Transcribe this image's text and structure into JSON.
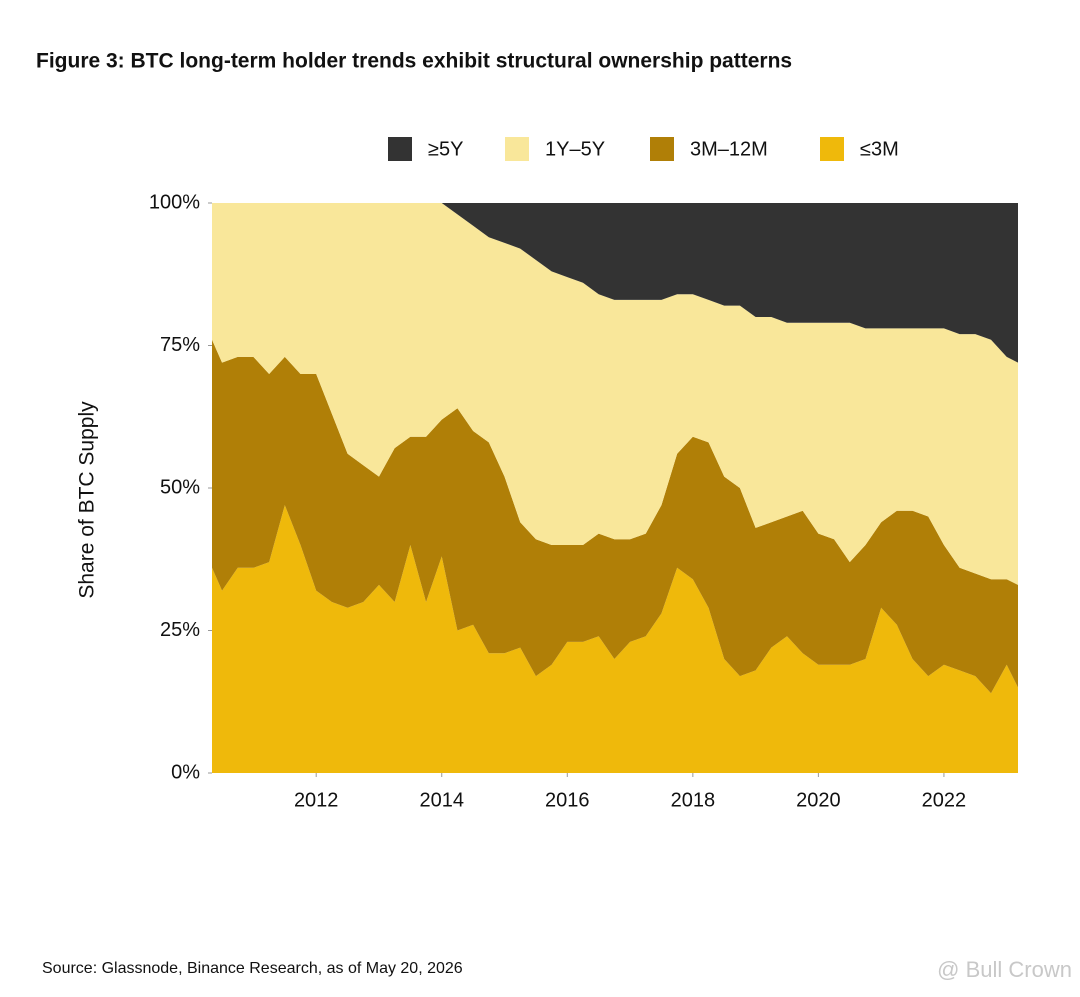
{
  "chart_data": {
    "type": "stacked-area",
    "title": "Figure 3: BTC long-term holder trends exhibit structural ownership patterns",
    "y_label": "Share of BTC Supply",
    "source": "Source: Glassnode, Binance Research, as of May 20, 2026",
    "watermark": "@ Bull Crown",
    "legend": "top",
    "x": [
      2010.34,
      2010.5,
      2010.75,
      2011,
      2011.25,
      2011.5,
      2011.75,
      2012,
      2012.25,
      2012.5,
      2012.75,
      2013,
      2013.25,
      2013.5,
      2013.75,
      2014,
      2014.25,
      2014.5,
      2014.75,
      2015,
      2015.25,
      2015.5,
      2015.75,
      2016,
      2016.25,
      2016.5,
      2016.75,
      2017,
      2017.25,
      2017.5,
      2017.75,
      2018,
      2018.25,
      2018.5,
      2018.75,
      2019,
      2019.25,
      2019.5,
      2019.75,
      2020,
      2020.25,
      2020.5,
      2020.75,
      2021,
      2021.25,
      2021.5,
      2021.75,
      2022,
      2022.25,
      2022.5,
      2022.75,
      2023,
      2023.18
    ],
    "series": [
      {
        "name": "≥5Y",
        "color": "#333333",
        "values": [
          0,
          0,
          0,
          0,
          0,
          0,
          0,
          0,
          0,
          0,
          0,
          0,
          0,
          0,
          0,
          0,
          2,
          4,
          6,
          7,
          8,
          10,
          12,
          13,
          14,
          16,
          17,
          17,
          17,
          17,
          16,
          16,
          17,
          18,
          18,
          20,
          20,
          21,
          21,
          21,
          21,
          21,
          22,
          22,
          22,
          22,
          22,
          22,
          23,
          23,
          24,
          27,
          28
        ]
      },
      {
        "name": "1Y–5Y",
        "color": "#f9e79a",
        "values": [
          24,
          28,
          27,
          27,
          30,
          27,
          30,
          30,
          37,
          44,
          46,
          48,
          43,
          41,
          41,
          38,
          34,
          36,
          36,
          41,
          48,
          49,
          48,
          47,
          46,
          42,
          42,
          42,
          41,
          36,
          28,
          25,
          25,
          30,
          32,
          37,
          36,
          34,
          33,
          37,
          38,
          42,
          38,
          34,
          32,
          32,
          33,
          38,
          41,
          42,
          42,
          39,
          39
        ]
      },
      {
        "name": "3M–12M",
        "color": "#b07f07",
        "values": [
          40,
          40,
          37,
          37,
          33,
          26,
          30,
          38,
          33,
          27,
          24,
          19,
          27,
          19,
          29,
          24,
          39,
          34,
          37,
          31,
          22,
          24,
          21,
          17,
          17,
          18,
          21,
          18,
          18,
          19,
          20,
          25,
          29,
          32,
          33,
          25,
          22,
          21,
          25,
          23,
          22,
          18,
          20,
          15,
          20,
          26,
          28,
          21,
          18,
          18,
          20,
          15,
          18
        ]
      },
      {
        "name": "≤3M",
        "color": "#efb90b",
        "values": [
          36,
          32,
          36,
          36,
          37,
          47,
          40,
          32,
          30,
          29,
          30,
          33,
          30,
          40,
          30,
          38,
          25,
          26,
          21,
          21,
          22,
          17,
          19,
          23,
          23,
          24,
          20,
          23,
          24,
          28,
          36,
          34,
          29,
          20,
          17,
          18,
          22,
          24,
          21,
          19,
          19,
          19,
          20,
          29,
          26,
          20,
          17,
          19,
          18,
          17,
          14,
          19,
          15
        ]
      }
    ],
    "xlim": [
      2010.34,
      2023.18
    ],
    "xticks": [
      2012,
      2014,
      2016,
      2018,
      2020,
      2022
    ],
    "ylim": [
      0,
      100
    ],
    "yticks": [
      {
        "value": 0,
        "label": "0%"
      },
      {
        "value": 25,
        "label": "25%"
      },
      {
        "value": 50,
        "label": "50%"
      },
      {
        "value": 75,
        "label": "75%"
      },
      {
        "value": 100,
        "label": "100%"
      }
    ]
  }
}
